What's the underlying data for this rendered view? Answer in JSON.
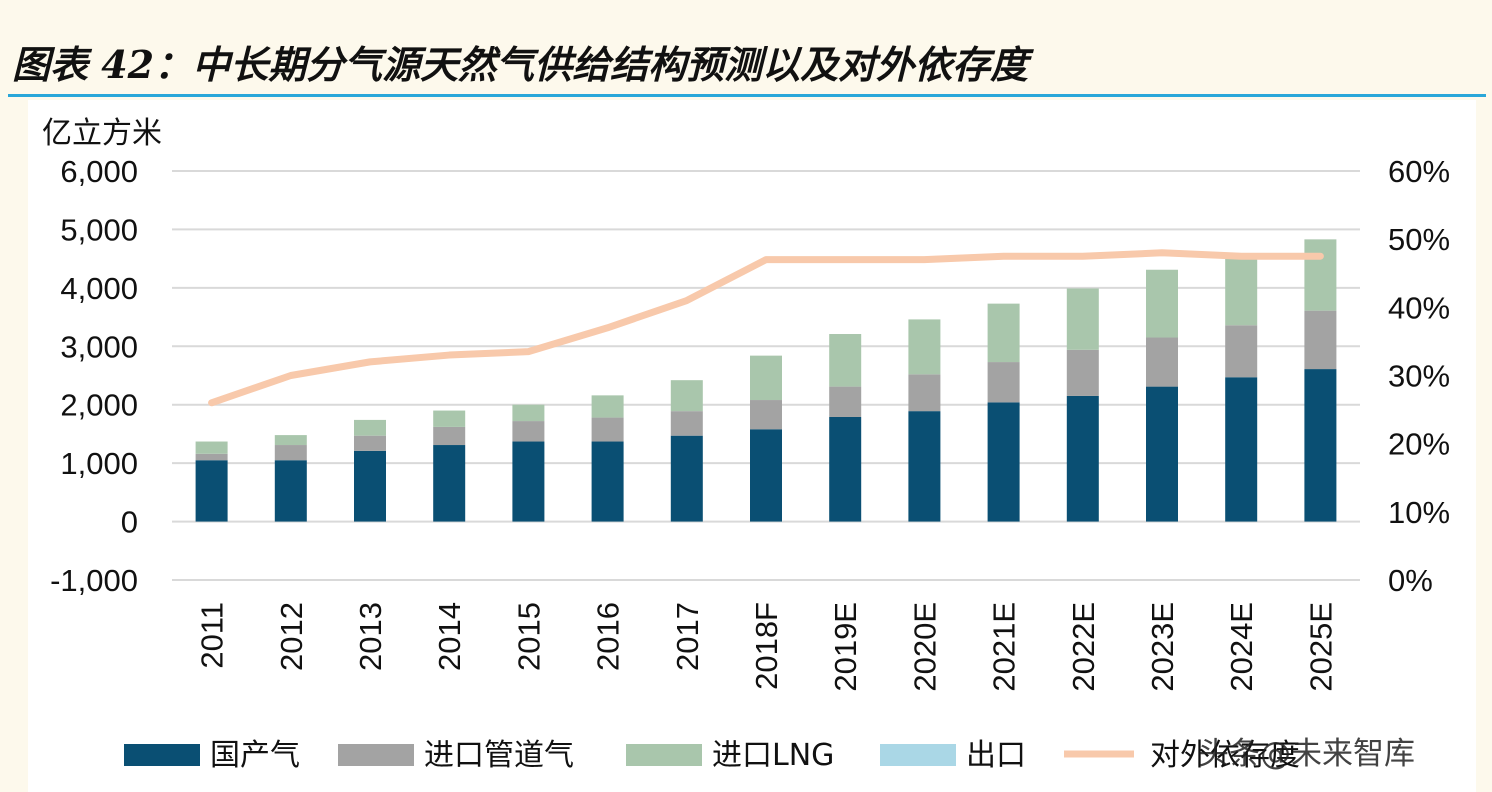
{
  "header": {
    "title": "图表 42：中长期分气源天然气供给结构预测以及对外依存度"
  },
  "watermark": "头条@未来智库",
  "chart_data": {
    "type": "bar",
    "stacked": true,
    "y_unit_label": "亿立方米",
    "categories": [
      "2011",
      "2012",
      "2013",
      "2014",
      "2015",
      "2016",
      "2017",
      "2018F",
      "2019E",
      "2020E",
      "2021E",
      "2022E",
      "2023E",
      "2024E",
      "2025E"
    ],
    "ylim": [
      -1000,
      6000
    ],
    "yticks": [
      -1000,
      0,
      1000,
      2000,
      3000,
      4000,
      5000,
      6000
    ],
    "ytick_labels": [
      "-1,000",
      "0",
      "1,000",
      "2,000",
      "3,000",
      "4,000",
      "5,000",
      "6,000"
    ],
    "y2lim": [
      0,
      0.6
    ],
    "y2ticks": [
      0,
      0.1,
      0.2,
      0.3,
      0.4,
      0.5,
      0.6
    ],
    "y2tick_labels": [
      "0%",
      "10%",
      "20%",
      "30%",
      "40%",
      "50%",
      "60%"
    ],
    "grid": true,
    "legend_position": "bottom",
    "series": [
      {
        "name": "国产气",
        "type": "bar",
        "color": "#0a4f73",
        "values": [
          1050,
          1050,
          1210,
          1310,
          1370,
          1370,
          1470,
          1580,
          1790,
          1890,
          2040,
          2150,
          2310,
          2470,
          2610
        ]
      },
      {
        "name": "进口管道气",
        "type": "bar",
        "color": "#a3a3a3",
        "values": [
          110,
          260,
          260,
          310,
          350,
          410,
          420,
          500,
          520,
          630,
          690,
          790,
          840,
          890,
          1000
        ]
      },
      {
        "name": "进口LNG",
        "type": "bar",
        "color": "#a9c6ac",
        "values": [
          210,
          170,
          270,
          280,
          280,
          380,
          530,
          760,
          900,
          940,
          1000,
          1050,
          1160,
          1210,
          1220
        ]
      },
      {
        "name": "出口",
        "type": "bar",
        "color": "#aad7e6",
        "values": [
          0,
          0,
          0,
          0,
          0,
          0,
          0,
          0,
          0,
          0,
          0,
          0,
          0,
          0,
          0
        ]
      },
      {
        "name": "对外依存度",
        "type": "line",
        "axis": "y2",
        "color": "#f8c9ab",
        "values": [
          0.26,
          0.3,
          0.32,
          0.33,
          0.335,
          0.37,
          0.41,
          0.47,
          0.47,
          0.47,
          0.475,
          0.475,
          0.48,
          0.475,
          0.475
        ]
      }
    ]
  }
}
